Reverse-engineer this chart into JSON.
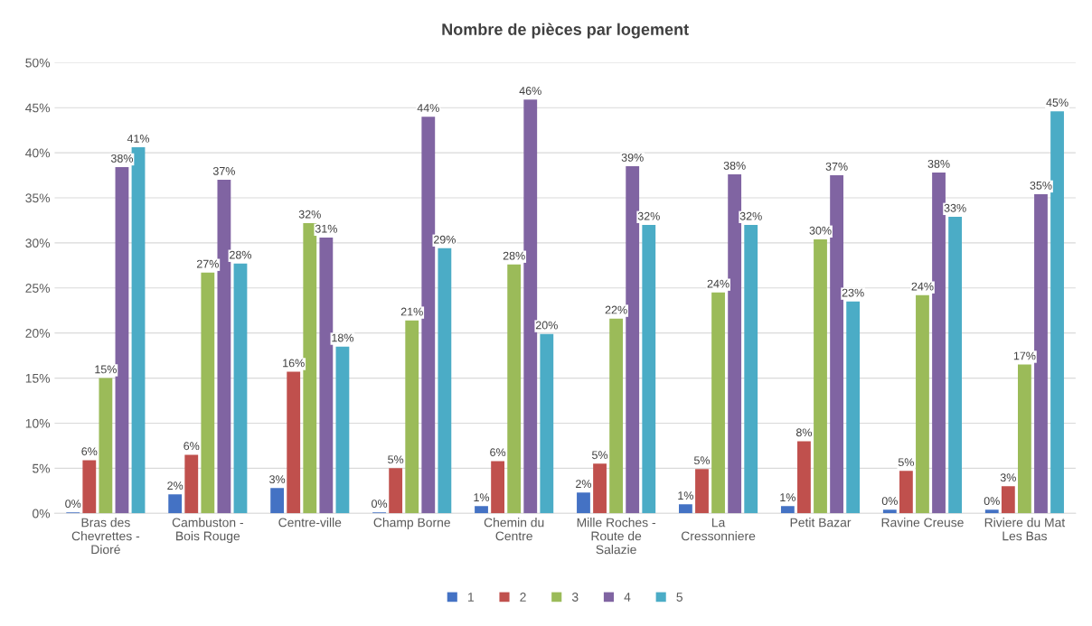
{
  "chart_data": {
    "type": "bar",
    "title": "Nombre de pièces par logement",
    "categories": [
      "Bras des\nChevrettes -\nDioré",
      "Cambuston -\nBois Rouge",
      "Centre-ville",
      "Champ Borne",
      "Chemin du\nCentre",
      "Mille Roches -\nRoute de\nSalazie",
      "La\nCressonniere",
      "Petit Bazar",
      "Ravine Creuse",
      "Riviere du Mat\nLes Bas"
    ],
    "series": [
      {
        "name": "1",
        "color": "#4472c4",
        "values": [
          0.1,
          2.1,
          2.8,
          0.1,
          0.8,
          2.3,
          1.0,
          0.8,
          0.4,
          0.4
        ],
        "value_labels": [
          "0%",
          "2%",
          "3%",
          "0%",
          "1%",
          "2%",
          "1%",
          "1%",
          "0%",
          "0%"
        ]
      },
      {
        "name": "2",
        "color": "#c0504d",
        "values": [
          5.9,
          6.5,
          15.7,
          5.0,
          5.8,
          5.5,
          4.9,
          8.0,
          4.7,
          3.0
        ],
        "value_labels": [
          "6%",
          "6%",
          "16%",
          "5%",
          "6%",
          "5%",
          "5%",
          "8%",
          "5%",
          "3%"
        ]
      },
      {
        "name": "3",
        "color": "#9bbb59",
        "values": [
          15.0,
          26.7,
          32.2,
          21.4,
          27.6,
          21.6,
          24.5,
          30.4,
          24.2,
          16.5
        ],
        "value_labels": [
          "15%",
          "27%",
          "32%",
          "21%",
          "28%",
          "22%",
          "24%",
          "30%",
          "24%",
          "17%"
        ]
      },
      {
        "name": "4",
        "color": "#8064a2",
        "values": [
          38.4,
          37.0,
          30.6,
          44.0,
          45.9,
          38.5,
          37.6,
          37.5,
          37.8,
          35.4
        ],
        "value_labels": [
          "38%",
          "37%",
          "31%",
          "44%",
          "46%",
          "39%",
          "38%",
          "37%",
          "38%",
          "35%"
        ]
      },
      {
        "name": "5",
        "color": "#4bacc6",
        "values": [
          40.6,
          27.7,
          18.5,
          29.4,
          19.9,
          32.0,
          32.0,
          23.5,
          32.9,
          44.6
        ],
        "value_labels": [
          "41%",
          "28%",
          "18%",
          "29%",
          "20%",
          "32%",
          "32%",
          "23%",
          "33%",
          "45%"
        ]
      }
    ],
    "ylim": [
      0,
      50
    ],
    "yticks": [
      {
        "value": 0,
        "label": "0%"
      },
      {
        "value": 5,
        "label": "5%"
      },
      {
        "value": 10,
        "label": "10%"
      },
      {
        "value": 15,
        "label": "15%"
      },
      {
        "value": 20,
        "label": "20%"
      },
      {
        "value": 25,
        "label": "25%"
      },
      {
        "value": 30,
        "label": "30%"
      },
      {
        "value": 35,
        "label": "35%"
      },
      {
        "value": 40,
        "label": "40%"
      },
      {
        "value": 45,
        "label": "45%"
      },
      {
        "value": 50,
        "label": "50%"
      }
    ],
    "grid": "y",
    "legend": "bottom"
  }
}
